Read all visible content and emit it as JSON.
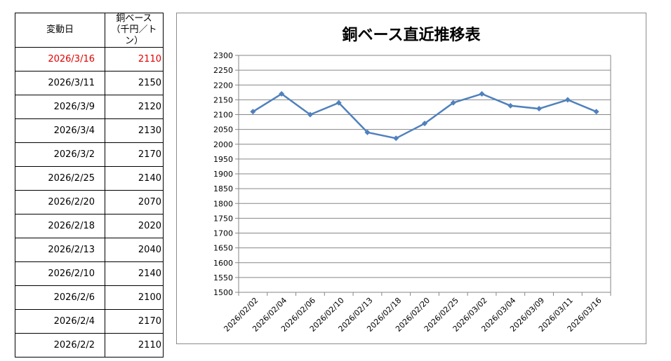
{
  "table": {
    "header": {
      "date": "変動日",
      "price_line1": "銅ベース",
      "price_line2": "（千円／トン）"
    },
    "rows": [
      {
        "date": "2026/3/16",
        "price": "2110"
      },
      {
        "date": "2026/3/11",
        "price": "2150"
      },
      {
        "date": "2026/3/9",
        "price": "2120"
      },
      {
        "date": "2026/3/4",
        "price": "2130"
      },
      {
        "date": "2026/3/2",
        "price": "2170"
      },
      {
        "date": "2026/2/25",
        "price": "2140"
      },
      {
        "date": "2026/2/20",
        "price": "2070"
      },
      {
        "date": "2026/2/18",
        "price": "2020"
      },
      {
        "date": "2026/2/13",
        "price": "2040"
      },
      {
        "date": "2026/2/10",
        "price": "2140"
      },
      {
        "date": "2026/2/6",
        "price": "2100"
      },
      {
        "date": "2026/2/4",
        "price": "2170"
      },
      {
        "date": "2026/2/2",
        "price": "2110"
      }
    ],
    "latest_color": "#e00000"
  },
  "chart_data": {
    "type": "line",
    "title": "銅ベース直近推移表",
    "xlabel": "",
    "ylabel": "",
    "categories": [
      "2026/02/02",
      "2026/02/04",
      "2026/02/06",
      "2026/02/10",
      "2026/02/13",
      "2026/02/18",
      "2026/02/20",
      "2026/02/25",
      "2026/03/02",
      "2026/03/04",
      "2026/03/09",
      "2026/03/11",
      "2026/03/16"
    ],
    "series": [
      {
        "values": [
          2110,
          2170,
          2100,
          2140,
          2040,
          2020,
          2070,
          2140,
          2170,
          2130,
          2120,
          2150,
          2110
        ],
        "color": "#4f81bd"
      }
    ],
    "ylim": [
      1500,
      2300
    ],
    "ytick_step": 50,
    "grid": true,
    "legend": "none",
    "marker": "diamond"
  }
}
